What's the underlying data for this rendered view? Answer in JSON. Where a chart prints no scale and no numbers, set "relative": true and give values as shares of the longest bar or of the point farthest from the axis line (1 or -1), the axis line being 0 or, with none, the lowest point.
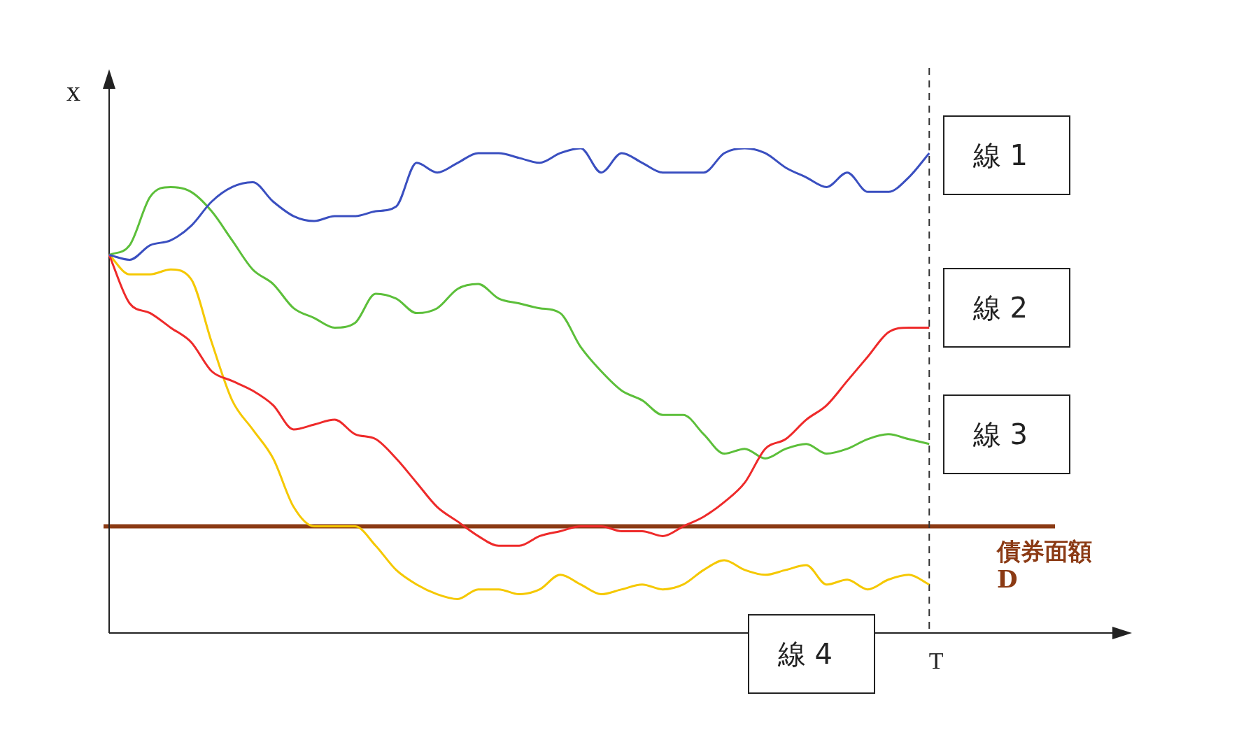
{
  "chart_data": {
    "type": "line",
    "relative": true,
    "ylabel": "x",
    "legend": false,
    "marker": "none",
    "categories": [
      null,
      null,
      null,
      null,
      null,
      null,
      null,
      null,
      null,
      null,
      null,
      null,
      null,
      null,
      null,
      null,
      null,
      null,
      null,
      null,
      null,
      null,
      null,
      null,
      null,
      null,
      null,
      null,
      null,
      null,
      null,
      null,
      null,
      null,
      null,
      null,
      null,
      null,
      null,
      null,
      null,
      null,
      null,
      null,
      null,
      null,
      null,
      null,
      null,
      null
    ],
    "series": [
      {
        "name": "線 1",
        "color": "#3a4fc0",
        "values": [
          0.78,
          0.77,
          0.8,
          0.81,
          0.84,
          0.89,
          0.92,
          0.93,
          0.89,
          0.86,
          0.85,
          0.86,
          0.86,
          0.87,
          0.88,
          0.97,
          0.95,
          0.97,
          0.99,
          0.99,
          0.98,
          0.97,
          0.99,
          1,
          0.95,
          0.99,
          0.97,
          0.95,
          0.95,
          0.95,
          0.99,
          1,
          0.99,
          0.96,
          0.94,
          0.92,
          0.95,
          0.91,
          0.91,
          0.94,
          0.99,
          null,
          null,
          null,
          null,
          null,
          null,
          null,
          null,
          null
        ]
      },
      {
        "name": "線 2",
        "color": "#ee2a2a",
        "values": [
          0.78,
          0.68,
          0.66,
          0.63,
          0.6,
          0.54,
          0.52,
          0.5,
          0.47,
          0.42,
          0.43,
          0.44,
          0.41,
          0.4,
          0.36,
          0.31,
          0.26,
          0.23,
          0.2,
          0.18,
          0.18,
          0.2,
          0.21,
          0.22,
          0.22,
          0.21,
          0.21,
          0.2,
          0.22,
          0.24,
          0.27,
          0.31,
          0.38,
          0.4,
          0.44,
          0.47,
          0.52,
          0.57,
          0.62,
          0.63,
          0.63,
          null,
          null,
          null,
          null,
          null,
          null,
          null,
          null,
          null
        ]
      },
      {
        "name": "線 3",
        "color": "#5cbf3a",
        "values": [
          0.78,
          0.8,
          0.9,
          0.92,
          0.91,
          0.87,
          0.81,
          0.75,
          0.72,
          0.67,
          0.65,
          0.63,
          0.64,
          0.7,
          0.69,
          0.66,
          0.67,
          0.71,
          0.72,
          0.69,
          0.68,
          0.67,
          0.66,
          0.59,
          0.54,
          0.5,
          0.48,
          0.45,
          0.45,
          0.41,
          0.37,
          0.38,
          0.36,
          0.38,
          0.39,
          0.37,
          0.38,
          0.4,
          0.41,
          0.4,
          0.39,
          null,
          null,
          null,
          null,
          null,
          null,
          null,
          null,
          null
        ]
      },
      {
        "name": "線 4",
        "color": "#f5c800",
        "values": [
          0.78,
          0.74,
          0.74,
          0.75,
          0.73,
          0.6,
          0.48,
          0.42,
          0.36,
          0.26,
          0.22,
          0.22,
          0.22,
          0.18,
          0.13,
          0.1,
          0.08,
          0.07,
          0.09,
          0.09,
          0.08,
          0.09,
          0.12,
          0.1,
          0.08,
          0.09,
          0.1,
          0.09,
          0.1,
          0.13,
          0.15,
          0.13,
          0.12,
          0.13,
          0.14,
          0.1,
          0.11,
          0.09,
          0.11,
          0.12,
          0.1,
          null,
          null,
          null,
          null,
          null,
          null,
          null,
          null,
          null
        ]
      }
    ],
    "ref_lines": [
      {
        "axis": "y",
        "value": 0.22,
        "label": "債券面額 D",
        "color": "#8b3a14",
        "line_style": "solid"
      },
      {
        "axis": "x",
        "label": "T",
        "color": "#333333",
        "line_style": "dashed"
      }
    ]
  }
}
